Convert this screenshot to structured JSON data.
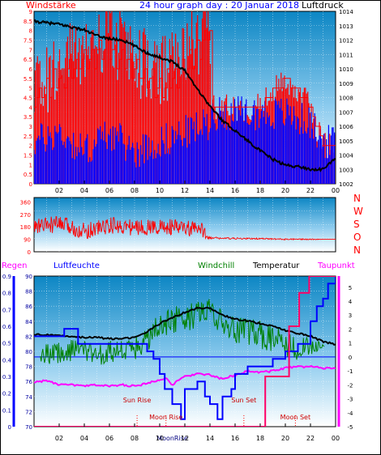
{
  "chart_data": [
    {
      "type": "line",
      "title": "24 hour graph day : 20 Januar 2018",
      "ylabel_left": "Windstärke",
      "ylabel_right": "Luftdruck",
      "x_tick_labels": [
        "02",
        "04",
        "06",
        "08",
        "10",
        "12",
        "14",
        "16",
        "18",
        "20",
        "22",
        "00"
      ],
      "y_left": {
        "ticks": [
          "0",
          "0.5",
          "1",
          "1.5",
          "2",
          "2.5",
          "3",
          "3.5",
          "4",
          "4.5",
          "5",
          "5.5",
          "6",
          "6.5",
          "7",
          "7.5",
          "8",
          "8.5",
          "9"
        ],
        "range": [
          0,
          9
        ]
      },
      "y_right": {
        "ticks": [
          "1002",
          "1003",
          "1004",
          "1005",
          "1006",
          "1007",
          "1008",
          "1009",
          "1010",
          "1011",
          "1012",
          "1013",
          "1014"
        ],
        "range": [
          1002,
          1014
        ]
      },
      "series": [
        {
          "color": "#000000",
          "axis": "right",
          "x": [
            0,
            1,
            2,
            3,
            4,
            5,
            6,
            7,
            8,
            9,
            10,
            11,
            12,
            13,
            14,
            15,
            16,
            17,
            18,
            19,
            20,
            21,
            22,
            23,
            24
          ],
          "values": [
            1013.3,
            1013.2,
            1013.1,
            1012.9,
            1012.7,
            1012.3,
            1012.1,
            1012.0,
            1011.6,
            1011.1,
            1010.8,
            1010.5,
            1009.9,
            1008.6,
            1007.4,
            1006.4,
            1005.7,
            1005.0,
            1004.3,
            1003.7,
            1003.3,
            1003.2,
            1003.0,
            1003.0,
            1003.8
          ]
        },
        {
          "color": "#0000ff",
          "axis": "left",
          "style": "spikes",
          "x": [
            0,
            2,
            4,
            6,
            8,
            10,
            12,
            14,
            14.1,
            16,
            18,
            20,
            22,
            23
          ],
          "values": [
            2,
            2.5,
            1.5,
            2.5,
            1.5,
            2,
            2.5,
            3,
            3.5,
            3.5,
            3.5,
            3.5,
            3,
            2
          ]
        },
        {
          "color": "#ff0000",
          "axis": "left",
          "style": "spikes",
          "x": [
            0,
            2,
            4,
            6,
            8,
            10,
            12,
            14,
            14.1,
            16,
            18,
            20,
            22,
            23
          ],
          "values": [
            4.5,
            5.5,
            6.5,
            7,
            6,
            5,
            6,
            8,
            4,
            4,
            4,
            5.5,
            4,
            2
          ]
        }
      ]
    },
    {
      "type": "line",
      "ylabel_right": [
        "N",
        "W",
        "S",
        "O",
        "N"
      ],
      "y_left": {
        "ticks": [
          "0",
          "90",
          "180",
          "270",
          "360"
        ],
        "range": [
          0,
          360
        ]
      },
      "series": [
        {
          "color": "#ff0000",
          "x": [
            0,
            2,
            4,
            6,
            8,
            10,
            12,
            13.5,
            14,
            16,
            18,
            20,
            22,
            23
          ],
          "values": [
            180,
            200,
            150,
            190,
            175,
            180,
            170,
            150,
            100,
            95,
            95,
            90,
            90,
            90
          ],
          "spread": [
            60,
            60,
            60,
            60,
            60,
            60,
            60,
            60,
            8,
            6,
            5,
            5,
            4,
            0
          ]
        }
      ]
    },
    {
      "type": "line",
      "legend": [
        "Regen",
        "Luftfeuchte",
        "Windchill",
        "Temperatur",
        "Taupunkt"
      ],
      "x_tick_labels": [
        "02",
        "04",
        "06",
        "08",
        "10",
        "12",
        "14",
        "16",
        "18",
        "20",
        "22",
        "00"
      ],
      "y_regen": {
        "ticks": [
          "0",
          "0.1",
          "0.2",
          "0.3",
          "0.4",
          "0.5",
          "0.6",
          "0.7",
          "0.8",
          "0.9"
        ],
        "range": [
          0,
          0.9
        ]
      },
      "y_humidity": {
        "ticks": [
          "70",
          "72",
          "74",
          "76",
          "78",
          "80",
          "82",
          "84",
          "86",
          "88",
          "90"
        ],
        "range": [
          70,
          90
        ]
      },
      "y_temp": {
        "ticks": [
          "-5",
          "-4",
          "-3",
          "-2",
          "-1",
          "0",
          "1",
          "2",
          "3",
          "4",
          "5"
        ],
        "range": [
          -5,
          5.8
        ]
      },
      "annotations": [
        {
          "text": "Sun Rise",
          "x": 8.2
        },
        {
          "text": "Moon Rise",
          "x": 10.5
        },
        {
          "text": "Sun Set",
          "x": 16.7
        },
        {
          "text": "Moon Set",
          "x": 20.8
        },
        {
          "text": "MoonRise",
          "x": 11.0
        }
      ],
      "series": [
        {
          "name": "Temperatur",
          "color": "#000000",
          "axis": "temp",
          "x": [
            0,
            1,
            2,
            3,
            4,
            5,
            6,
            7,
            8,
            9,
            10,
            11,
            12,
            13,
            14,
            15,
            16,
            17,
            18,
            19,
            20,
            21,
            22,
            23,
            24
          ],
          "values": [
            1.6,
            1.6,
            1.5,
            1.5,
            1.4,
            1.4,
            1.3,
            1.3,
            1.4,
            1.8,
            2.4,
            2.8,
            3.2,
            3.5,
            3.5,
            3.0,
            2.7,
            2.6,
            2.4,
            2.2,
            1.9,
            1.7,
            1.5,
            1.1,
            0.9
          ]
        },
        {
          "name": "Windchill",
          "color": "#008000",
          "axis": "temp",
          "x": [
            0,
            1,
            2,
            3,
            4,
            5,
            6,
            7,
            8,
            9,
            10,
            11,
            12,
            13,
            14,
            15,
            16,
            17,
            18,
            19,
            20,
            21,
            22,
            23,
            24
          ],
          "values": [
            0.4,
            0.2,
            0.3,
            0.5,
            0.5,
            0.1,
            0.4,
            0.4,
            0.6,
            1.3,
            2.1,
            2.6,
            2.8,
            3.1,
            3.2,
            2.4,
            2.0,
            1.9,
            1.6,
            1.3,
            1.0,
            0.6,
            0.7,
            0.9,
            0.9
          ],
          "spread": [
            0.8,
            0.8,
            0.8,
            0.8,
            0.8,
            0.8,
            0.8,
            0.8,
            0.8,
            1.0,
            1.0,
            1.0,
            1.0,
            1.0,
            1.0,
            1.0,
            1.0,
            1.0,
            1.0,
            1.0,
            1.0,
            1.0,
            0.6,
            0.2,
            0
          ]
        },
        {
          "name": "Luftfeuchte",
          "color": "#0000ff",
          "axis": "humidity",
          "style": "step",
          "x": [
            0,
            1.5,
            2.4,
            3.5,
            5,
            7,
            8,
            9,
            9.5,
            10,
            10.4,
            11,
            11.7,
            12,
            12.6,
            13,
            13.6,
            14,
            14.6,
            15,
            15.7,
            16,
            16.6,
            17,
            18,
            19,
            20,
            21,
            22,
            22.5,
            23,
            23.4,
            24
          ],
          "values": [
            82,
            82,
            83,
            81,
            81,
            81,
            81,
            80,
            79,
            77,
            75,
            73,
            71,
            75,
            75,
            76,
            74,
            73,
            71,
            74,
            75,
            77,
            77,
            78,
            78,
            79,
            80,
            81,
            84,
            86,
            87,
            89,
            90
          ]
        },
        {
          "name": "Taupunkt",
          "color": "#ff00ff",
          "axis": "temp",
          "x": [
            0,
            1,
            2,
            3,
            4,
            5,
            6,
            7,
            8,
            9,
            10,
            10.5,
            11,
            12,
            13,
            14,
            15,
            16,
            17,
            18,
            19,
            20,
            21,
            22,
            23,
            24
          ],
          "values": [
            -1.8,
            -1.7,
            -2.0,
            -2.0,
            -2.1,
            -2.0,
            -2.1,
            -2.0,
            -2.1,
            -1.9,
            -1.6,
            -1.5,
            -2.0,
            -1.4,
            -1.2,
            -1.3,
            -1.6,
            -1.3,
            -1.0,
            -1.1,
            -1.0,
            -0.8,
            -0.7,
            -0.7,
            -0.8,
            -0.8
          ]
        },
        {
          "name": "Regen",
          "color": "#ff0066",
          "axis": "regen",
          "style": "step",
          "x": [
            0,
            18.3,
            18.4,
            20.2,
            20.3,
            21,
            21.1,
            21.8,
            21.9,
            24
          ],
          "values": [
            0,
            0,
            0.3,
            0.3,
            0.6,
            0.6,
            0.8,
            0.8,
            0.9,
            0.9
          ]
        }
      ]
    }
  ]
}
